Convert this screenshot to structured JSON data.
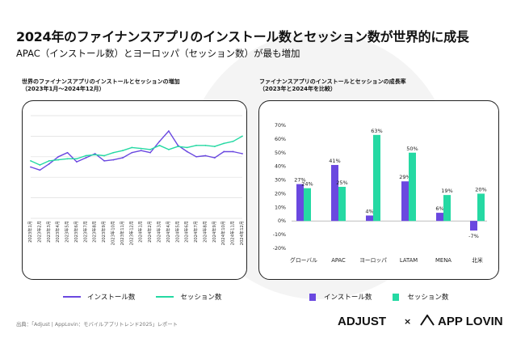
{
  "header": {
    "title": "2024年のファイナンスアプリのインストール数とセッション数が世界的に成長",
    "subtitle": "APAC（インストール数）とヨーロッパ（セッション数）が最も増加"
  },
  "colors": {
    "install": "#6a48e0",
    "session": "#25d9a3"
  },
  "chart_data": [
    {
      "type": "line",
      "title": "世界のファイナンスアプリのインストールとセッションの増加",
      "subtitle": "（2023年1月〜2024年12月）",
      "x": [
        "2023年1月",
        "2023年2月",
        "2023年3月",
        "2023年4月",
        "2023年5月",
        "2023年6月",
        "2023年7月",
        "2023年8月",
        "2023年9月",
        "2023年10月",
        "2023年11月",
        "2023年12月",
        "2024年1月",
        "2024年2月",
        "2024年3月",
        "2024年4月",
        "2024年5月",
        "2024年6月",
        "2024年7月",
        "2024年8月",
        "2024年9月",
        "2024年10月",
        "2024年11月",
        "2024年12月"
      ],
      "ylim": [
        0,
        100
      ],
      "series": [
        {
          "name": "インストール数",
          "values": [
            50,
            47,
            53,
            60,
            64,
            55,
            59,
            63,
            56,
            57,
            59,
            64,
            66,
            64,
            75,
            85,
            71,
            65,
            60,
            61,
            59,
            65,
            65,
            63
          ]
        },
        {
          "name": "セッション数",
          "values": [
            56,
            52,
            56,
            57,
            58,
            58,
            61,
            62,
            61,
            64,
            66,
            69,
            68,
            67,
            71,
            67,
            70,
            69,
            71,
            71,
            70,
            73,
            75,
            80
          ]
        }
      ],
      "legend": "bottom"
    },
    {
      "type": "bar",
      "title": "ファイナンスアプリのインストールとセッションの成長率",
      "subtitle": "（2023年と2024年を比較）",
      "categories": [
        "グローバル",
        "APAC",
        "ヨーロッパ",
        "LATAM",
        "MENA",
        "北米"
      ],
      "ylim": [
        -20,
        70
      ],
      "yticks": [
        "70%",
        "60%",
        "50%",
        "40%",
        "30%",
        "20%",
        "10%",
        "0%",
        "-10%",
        "-20%"
      ],
      "series": [
        {
          "name": "インストール数",
          "values": [
            27,
            41,
            4,
            29,
            6,
            -7
          ],
          "labels": [
            "27%",
            "41%",
            "4%",
            "29%",
            "6%",
            "-7%"
          ]
        },
        {
          "name": "セッション数",
          "values": [
            24,
            25,
            63,
            50,
            19,
            20
          ],
          "labels": [
            "24%",
            "25%",
            "63%",
            "50%",
            "19%",
            "20%"
          ]
        }
      ],
      "legend": "bottom"
    }
  ],
  "footer": {
    "source": "出典：「Adjust | AppLovin：モバイルアプリトレンド2025」レポート",
    "logo_adjust": "ADJUST",
    "logo_sep": "×",
    "logo_applovin": "APP LOVIN"
  }
}
